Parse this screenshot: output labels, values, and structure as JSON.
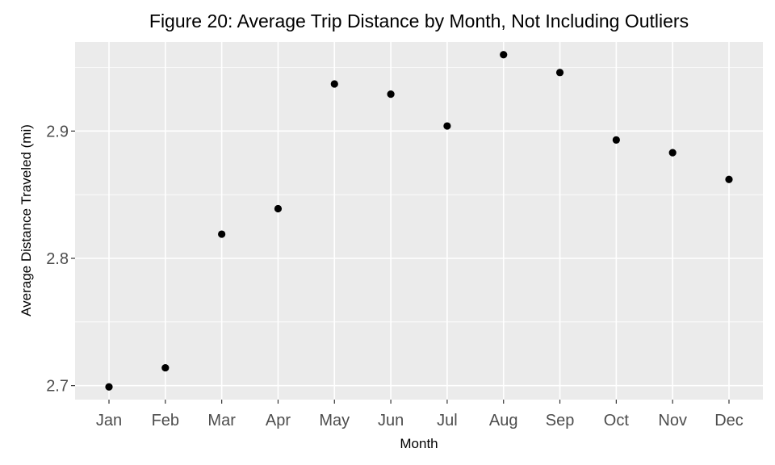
{
  "chart_data": {
    "type": "scatter",
    "title": "Figure 20: Average Trip Distance by Month, Not Including Outliers",
    "xlabel": "Month",
    "ylabel": "Average Distance Traveled (mi)",
    "categories": [
      "Jan",
      "Feb",
      "Mar",
      "Apr",
      "May",
      "Jun",
      "Jul",
      "Aug",
      "Sep",
      "Oct",
      "Nov",
      "Dec"
    ],
    "values": [
      2.699,
      2.714,
      2.819,
      2.839,
      2.937,
      2.929,
      2.904,
      2.96,
      2.946,
      2.893,
      2.883,
      2.862
    ],
    "ylim": [
      2.689,
      2.97
    ],
    "yticks": [
      2.7,
      2.8,
      2.9
    ],
    "ytick_labels": [
      "2.7",
      "2.8",
      "2.9"
    ],
    "grid": true,
    "colors": {
      "panel": "#ebebeb",
      "grid": "#ffffff",
      "point": "#000000",
      "tick_label": "#4d4d4d"
    }
  }
}
